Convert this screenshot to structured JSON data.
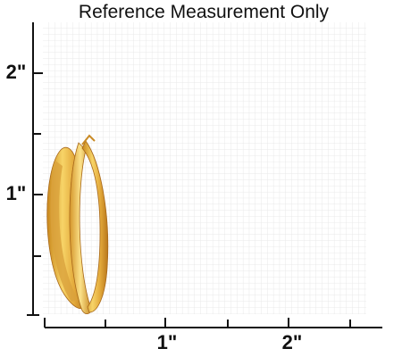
{
  "header": {
    "title": "Reference Measurement Only"
  },
  "ruler": {
    "y_labels": [
      "2\"",
      "1\""
    ],
    "x_labels": [
      "1\"",
      "2\""
    ]
  }
}
